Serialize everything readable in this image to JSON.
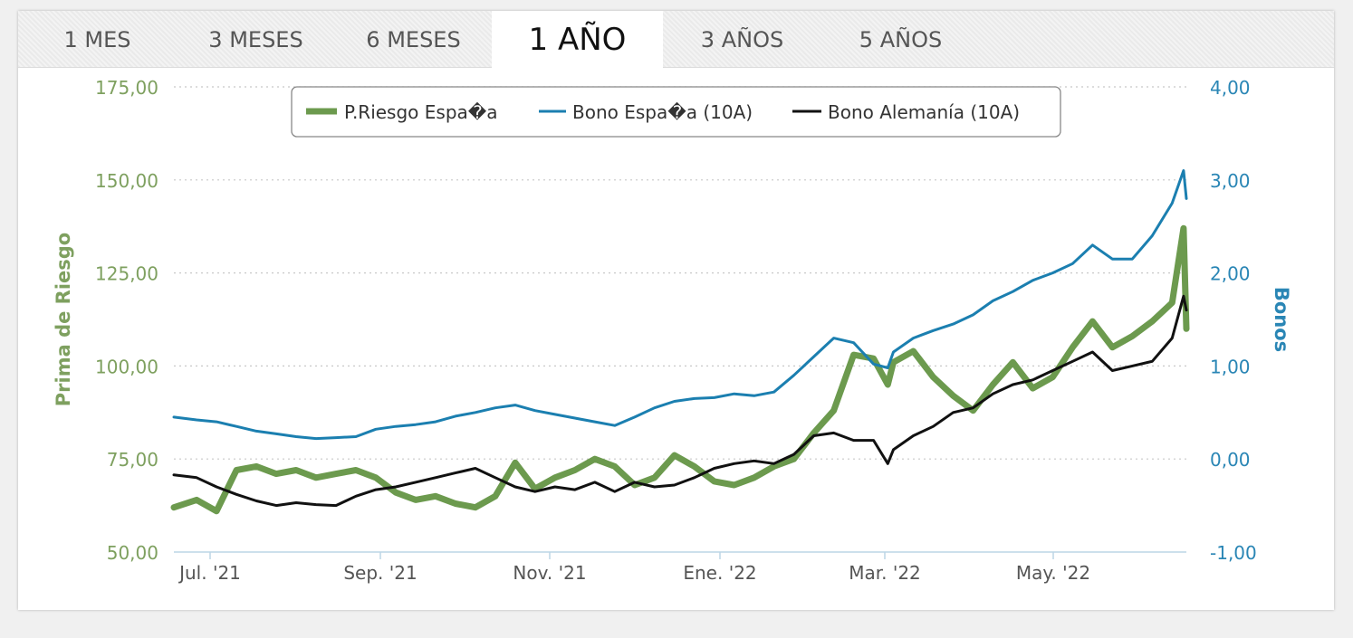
{
  "tabs": [
    {
      "label": "1 MES",
      "active": false
    },
    {
      "label": "3 MESES",
      "active": false
    },
    {
      "label": "6 MESES",
      "active": false
    },
    {
      "label": "1 AÑO",
      "active": true
    },
    {
      "label": "3 AÑOS",
      "active": false
    },
    {
      "label": "5 AÑOS",
      "active": false
    }
  ],
  "colors": {
    "risk": "#6c9a4e",
    "bond_es": "#1b7fb0",
    "bond_de": "#111111",
    "left_axis": "#7ea05f",
    "right_axis": "#2a86b5"
  },
  "chart_data": {
    "type": "line",
    "grid": true,
    "legend_placement": "top-center",
    "x_ticks": [
      "Jul. '21",
      "Sep. '21",
      "Nov. '21",
      "Ene. '22",
      "Mar. '22",
      "May. '22"
    ],
    "x_range": [
      "2021-06-23",
      "2022-06-14"
    ],
    "y_left": {
      "label": "Prima de Riesgo",
      "ticks": [
        "50,00",
        "75,00",
        "100,00",
        "125,00",
        "150,00",
        "175,00"
      ],
      "range": [
        50,
        175
      ]
    },
    "y_right": {
      "label": "Bonos",
      "ticks": [
        "-1,00",
        "0,00",
        "1,00",
        "2,00",
        "3,00",
        "4,00"
      ],
      "range": [
        -1,
        4
      ]
    },
    "series": [
      {
        "name": "P.Riesgo Espa�a",
        "axis": "left",
        "x": [
          "2021-06-23",
          "2021-07-01",
          "2021-07-08",
          "2021-07-15",
          "2021-07-22",
          "2021-07-29",
          "2021-08-05",
          "2021-08-12",
          "2021-08-19",
          "2021-08-26",
          "2021-09-02",
          "2021-09-09",
          "2021-09-16",
          "2021-09-23",
          "2021-09-30",
          "2021-10-07",
          "2021-10-14",
          "2021-10-21",
          "2021-10-28",
          "2021-11-04",
          "2021-11-11",
          "2021-11-18",
          "2021-11-25",
          "2021-12-02",
          "2021-12-09",
          "2021-12-16",
          "2021-12-23",
          "2021-12-30",
          "2022-01-06",
          "2022-01-13",
          "2022-01-20",
          "2022-01-27",
          "2022-02-03",
          "2022-02-10",
          "2022-02-17",
          "2022-02-24",
          "2022-03-01",
          "2022-03-03",
          "2022-03-10",
          "2022-03-17",
          "2022-03-24",
          "2022-03-31",
          "2022-04-07",
          "2022-04-14",
          "2022-04-21",
          "2022-04-28",
          "2022-05-05",
          "2022-05-12",
          "2022-05-19",
          "2022-05-26",
          "2022-06-02",
          "2022-06-09",
          "2022-06-13",
          "2022-06-14"
        ],
        "y": [
          62,
          64,
          61,
          72,
          73,
          71,
          72,
          70,
          71,
          72,
          70,
          66,
          64,
          65,
          63,
          62,
          65,
          74,
          67,
          70,
          72,
          75,
          73,
          68,
          70,
          76,
          73,
          69,
          68,
          70,
          73,
          75,
          82,
          88,
          103,
          102,
          95,
          101,
          104,
          97,
          92,
          88,
          95,
          101,
          94,
          97,
          105,
          112,
          105,
          108,
          112,
          117,
          137,
          110
        ]
      },
      {
        "name": "Bono Espa�a (10A)",
        "axis": "right",
        "x": [
          "2021-06-23",
          "2021-07-01",
          "2021-07-08",
          "2021-07-15",
          "2021-07-22",
          "2021-07-29",
          "2021-08-05",
          "2021-08-12",
          "2021-08-19",
          "2021-08-26",
          "2021-09-02",
          "2021-09-09",
          "2021-09-16",
          "2021-09-23",
          "2021-09-30",
          "2021-10-07",
          "2021-10-14",
          "2021-10-21",
          "2021-10-28",
          "2021-11-04",
          "2021-11-11",
          "2021-11-18",
          "2021-11-25",
          "2021-12-02",
          "2021-12-09",
          "2021-12-16",
          "2021-12-23",
          "2021-12-30",
          "2022-01-06",
          "2022-01-13",
          "2022-01-20",
          "2022-01-27",
          "2022-02-03",
          "2022-02-10",
          "2022-02-17",
          "2022-02-24",
          "2022-03-01",
          "2022-03-03",
          "2022-03-10",
          "2022-03-17",
          "2022-03-24",
          "2022-03-31",
          "2022-04-07",
          "2022-04-14",
          "2022-04-21",
          "2022-04-28",
          "2022-05-05",
          "2022-05-12",
          "2022-05-19",
          "2022-05-26",
          "2022-06-02",
          "2022-06-09",
          "2022-06-13",
          "2022-06-14"
        ],
        "y": [
          0.45,
          0.42,
          0.4,
          0.35,
          0.3,
          0.27,
          0.24,
          0.22,
          0.23,
          0.24,
          0.32,
          0.35,
          0.37,
          0.4,
          0.46,
          0.5,
          0.55,
          0.58,
          0.52,
          0.48,
          0.44,
          0.4,
          0.36,
          0.45,
          0.55,
          0.62,
          0.65,
          0.66,
          0.7,
          0.68,
          0.72,
          0.9,
          1.1,
          1.3,
          1.25,
          1.02,
          0.98,
          1.15,
          1.3,
          1.38,
          1.45,
          1.55,
          1.7,
          1.8,
          1.92,
          2.0,
          2.1,
          2.3,
          2.15,
          2.15,
          2.4,
          2.75,
          3.1,
          2.8
        ]
      },
      {
        "name": "Bono Alemanía (10A)",
        "axis": "right",
        "x": [
          "2021-06-23",
          "2021-07-01",
          "2021-07-08",
          "2021-07-15",
          "2021-07-22",
          "2021-07-29",
          "2021-08-05",
          "2021-08-12",
          "2021-08-19",
          "2021-08-26",
          "2021-09-02",
          "2021-09-09",
          "2021-09-16",
          "2021-09-23",
          "2021-09-30",
          "2021-10-07",
          "2021-10-14",
          "2021-10-21",
          "2021-10-28",
          "2021-11-04",
          "2021-11-11",
          "2021-11-18",
          "2021-11-25",
          "2021-12-02",
          "2021-12-09",
          "2021-12-16",
          "2021-12-23",
          "2021-12-30",
          "2022-01-06",
          "2022-01-13",
          "2022-01-20",
          "2022-01-27",
          "2022-02-03",
          "2022-02-10",
          "2022-02-17",
          "2022-02-24",
          "2022-03-01",
          "2022-03-03",
          "2022-03-10",
          "2022-03-17",
          "2022-03-24",
          "2022-03-31",
          "2022-04-07",
          "2022-04-14",
          "2022-04-21",
          "2022-04-28",
          "2022-05-05",
          "2022-05-12",
          "2022-05-19",
          "2022-05-26",
          "2022-06-02",
          "2022-06-09",
          "2022-06-13",
          "2022-06-14"
        ],
        "y": [
          -0.17,
          -0.2,
          -0.3,
          -0.38,
          -0.45,
          -0.5,
          -0.47,
          -0.49,
          -0.5,
          -0.4,
          -0.33,
          -0.3,
          -0.25,
          -0.2,
          -0.15,
          -0.1,
          -0.2,
          -0.3,
          -0.35,
          -0.3,
          -0.33,
          -0.25,
          -0.35,
          -0.25,
          -0.3,
          -0.28,
          -0.2,
          -0.1,
          -0.05,
          -0.02,
          -0.05,
          0.05,
          0.25,
          0.28,
          0.2,
          0.2,
          -0.05,
          0.1,
          0.25,
          0.35,
          0.5,
          0.55,
          0.7,
          0.8,
          0.85,
          0.95,
          1.05,
          1.15,
          0.95,
          1.0,
          1.05,
          1.3,
          1.75,
          1.6
        ]
      }
    ]
  }
}
